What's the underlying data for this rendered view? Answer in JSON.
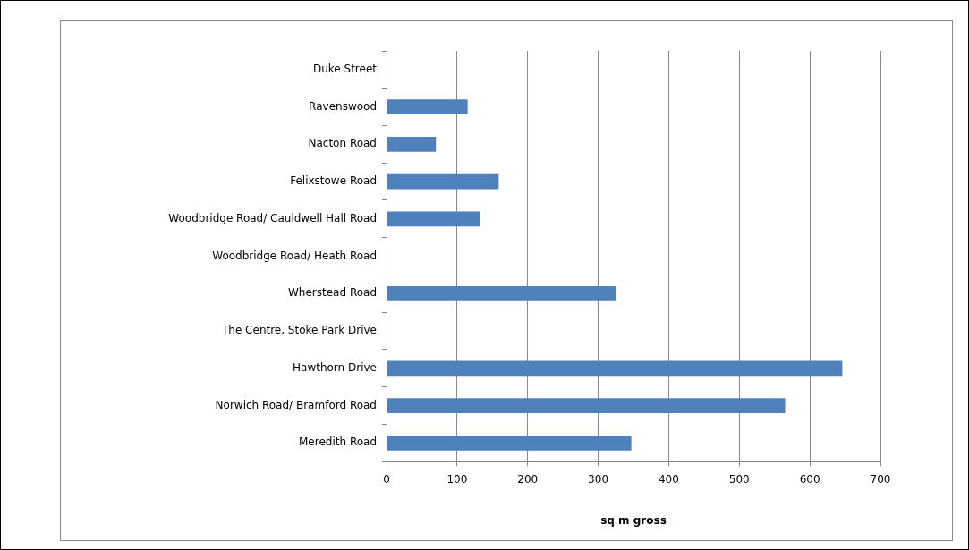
{
  "chart_data": {
    "type": "bar",
    "orientation": "horizontal",
    "xlabel": "sq m gross",
    "categories": [
      "Duke Street",
      "Ravenswood",
      "Nacton Road",
      "Felixstowe Road",
      "Woodbridge Road/ Cauldwell Hall Road",
      "Woodbridge Road/ Heath Road",
      "Wherstead Road",
      "The Centre, Stoke Park Drive",
      "Hawthorn Drive",
      "Norwich Road/ Bramford Road",
      "Meredith Road"
    ],
    "values": [
      null,
      115,
      70,
      159,
      133,
      null,
      326,
      null,
      646,
      565,
      347
    ],
    "color": "#4f81bd",
    "xlim": [
      0,
      700
    ],
    "xticks": [
      0,
      100,
      200,
      300,
      400,
      500,
      600,
      700
    ],
    "grid": "x",
    "legend": false
  }
}
